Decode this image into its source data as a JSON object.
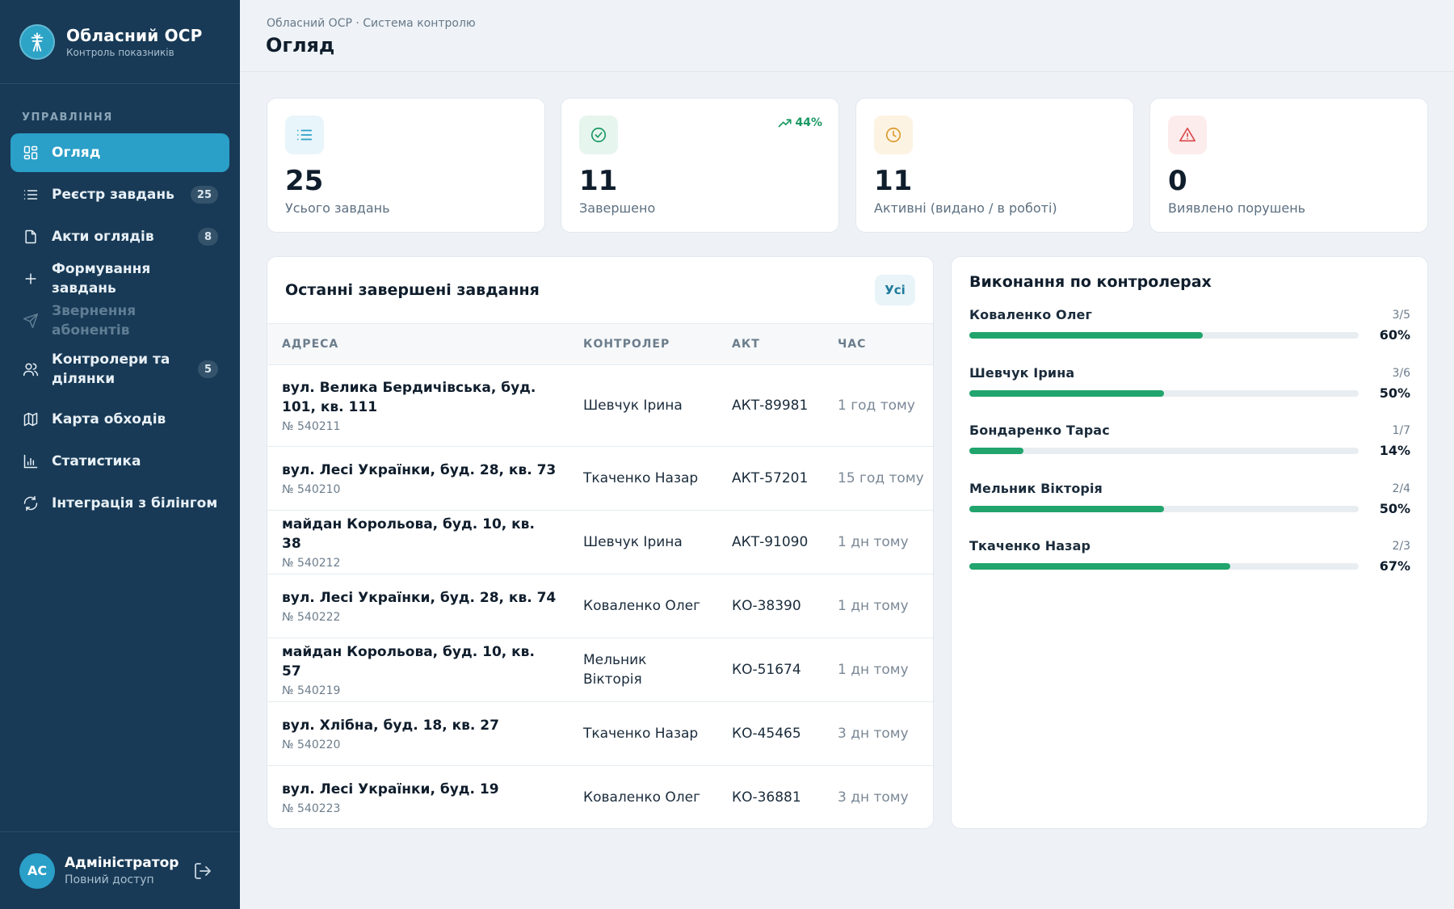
{
  "brand": {
    "title": "Обласний ОСР",
    "subtitle": "Контроль показників"
  },
  "nav": {
    "section": "УПРАВЛІННЯ",
    "items": [
      {
        "label": "Огляд",
        "icon": "dashboard-icon",
        "badge": "",
        "state": "active"
      },
      {
        "label": "Реєстр завдань",
        "icon": "list-icon",
        "badge": "25",
        "state": "normal"
      },
      {
        "label": "Акти оглядів",
        "icon": "document-icon",
        "badge": "8",
        "state": "normal"
      },
      {
        "label": "Формування завдань",
        "icon": "plus-icon",
        "badge": "",
        "state": "normal"
      },
      {
        "label": "Звернення абонентів",
        "icon": "send-icon",
        "badge": "",
        "state": "disabled"
      },
      {
        "label": "Контролери та ділянки",
        "icon": "users-icon",
        "badge": "5",
        "state": "normal"
      },
      {
        "label": "Карта обходів",
        "icon": "map-icon",
        "badge": "",
        "state": "normal"
      },
      {
        "label": "Статистика",
        "icon": "chart-icon",
        "badge": "",
        "state": "normal"
      },
      {
        "label": "Інтеграція з білінгом",
        "icon": "sync-icon",
        "badge": "",
        "state": "normal"
      }
    ]
  },
  "user": {
    "initials": "АС",
    "name": "Адміністратор",
    "role": "Повний доступ"
  },
  "header": {
    "breadcrumb": "Обласний ОСР · Система контролю",
    "title": "Огляд"
  },
  "stats": [
    {
      "value": "25",
      "label": "Усього завдань",
      "icon": "list-icon",
      "color": "#2a9fc8",
      "bg": "#e8f5fa",
      "trend": ""
    },
    {
      "value": "11",
      "label": "Завершено",
      "icon": "check-circle-icon",
      "color": "#1a9a63",
      "bg": "#e6f5ee",
      "trend": "44%"
    },
    {
      "value": "11",
      "label": "Активні (видано / в роботі)",
      "icon": "clock-icon",
      "color": "#d99a2b",
      "bg": "#fdf3e3",
      "trend": ""
    },
    {
      "value": "0",
      "label": "Виявлено порушень",
      "icon": "warning-icon",
      "color": "#d8494b",
      "bg": "#fdecec",
      "trend": ""
    }
  ],
  "recent": {
    "title": "Останні завершені завдання",
    "all_label": "Усі",
    "columns": [
      "АДРЕСА",
      "КОНТРОЛЕР",
      "АКТ",
      "ЧАС"
    ],
    "rows": [
      {
        "address": "вул. Велика Бердичівська, буд. 101, кв. 111",
        "account": "№ 540211",
        "controller": "Шевчук Ірина",
        "act": "АКТ-89981",
        "time": "1 год тому"
      },
      {
        "address": "вул. Лесі Українки, буд. 28, кв. 73",
        "account": "№ 540210",
        "controller": "Ткаченко Назар",
        "act": "АКТ-57201",
        "time": "15 год тому"
      },
      {
        "address": "майдан Корольова, буд. 10, кв. 38",
        "account": "№ 540212",
        "controller": "Шевчук Ірина",
        "act": "АКТ-91090",
        "time": "1 дн тому"
      },
      {
        "address": "вул. Лесі Українки, буд. 28, кв. 74",
        "account": "№ 540222",
        "controller": "Коваленко Олег",
        "act": "КО-38390",
        "time": "1 дн тому"
      },
      {
        "address": "майдан Корольова, буд. 10, кв. 57",
        "account": "№ 540219",
        "controller": "Мельник Вікторія",
        "act": "КО-51674",
        "time": "1 дн тому"
      },
      {
        "address": "вул. Хлібна, буд. 18, кв. 27",
        "account": "№ 540220",
        "controller": "Ткаченко Назар",
        "act": "КО-45465",
        "time": "3 дн тому"
      },
      {
        "address": "вул. Лесі Українки, буд. 19",
        "account": "№ 540223",
        "controller": "Коваленко Олег",
        "act": "КО-36881",
        "time": "3 дн тому"
      }
    ]
  },
  "performance": {
    "title": "Виконання по контролерах",
    "rows": [
      {
        "name": "Коваленко Олег",
        "count": "3/5",
        "percent": "60%",
        "value": 60
      },
      {
        "name": "Шевчук Ірина",
        "count": "3/6",
        "percent": "50%",
        "value": 50
      },
      {
        "name": "Бондаренко Тарас",
        "count": "1/7",
        "percent": "14%",
        "value": 14
      },
      {
        "name": "Мельник Вікторія",
        "count": "2/4",
        "percent": "50%",
        "value": 50
      },
      {
        "name": "Ткаченко Назар",
        "count": "2/3",
        "percent": "67%",
        "value": 67
      }
    ]
  }
}
